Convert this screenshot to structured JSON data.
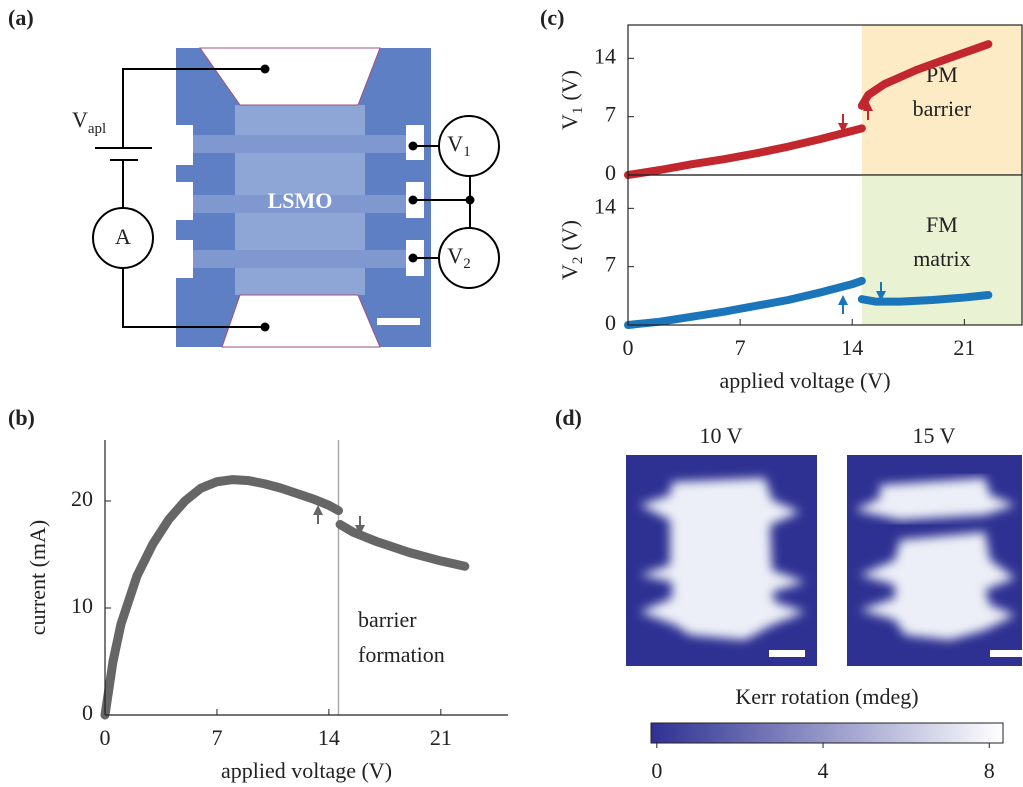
{
  "panels": [
    "(a)",
    "(b)",
    "(c)",
    "(d)"
  ],
  "diagram": {
    "battery_label": [
      "V",
      "apl"
    ],
    "ammeter": "A",
    "voltmeters": [
      [
        "V",
        "1"
      ],
      [
        "V",
        "2"
      ]
    ],
    "sample": "LSMO"
  },
  "images": [
    {
      "title": "10 V"
    },
    {
      "title": "15 V"
    }
  ],
  "chart_data": [
    {
      "type": "line",
      "xlabel": "applied voltage (V)",
      "ylabel": [
        "current (mA)"
      ],
      "x": [
        0,
        0.5,
        1,
        2,
        3,
        4,
        5,
        6,
        7,
        8,
        9,
        10,
        11,
        12,
        13,
        14,
        14.6,
        14.6,
        14.7,
        15.5,
        17,
        19,
        21,
        22.5
      ],
      "series": [
        {
          "color": "#666666",
          "values": [
            0,
            5,
            8.5,
            13,
            16,
            18.3,
            20,
            21.2,
            21.8,
            22,
            21.9,
            21.6,
            21.2,
            20.7,
            20.2,
            19.6,
            19.1,
            null,
            17.8,
            17.1,
            16.2,
            15.2,
            14.4,
            13.9
          ]
        }
      ],
      "vline": 14.6,
      "annotation": [
        "barrier",
        "formation"
      ],
      "xlim": [
        0,
        25.2
      ],
      "ylim": [
        0,
        25.7
      ],
      "xticks": [
        0,
        7,
        14,
        21
      ],
      "yticks": [
        0,
        10,
        20
      ]
    },
    {
      "type": "line",
      "ylabel": [
        "V",
        "1",
        "(V)"
      ],
      "x": [
        0,
        2,
        4,
        6,
        8,
        10,
        12,
        14,
        14.6,
        14.6,
        14.6,
        15,
        16,
        18,
        20,
        22.5
      ],
      "series": [
        {
          "color": "#c1272d",
          "values": [
            0,
            0.6,
            1.3,
            1.9,
            2.6,
            3.4,
            4.3,
            5.3,
            5.6,
            null,
            8.3,
            9.6,
            10.9,
            12.6,
            14,
            15.7
          ]
        }
      ],
      "region": {
        "from": 14.6,
        "color": "#fcebc5",
        "label": [
          "PM",
          "barrier"
        ]
      },
      "xlim": [
        0,
        24.6
      ],
      "ylim": [
        0,
        18
      ],
      "yticks": [
        0,
        7,
        14
      ]
    },
    {
      "type": "line",
      "xlabel": "applied voltage (V)",
      "ylabel": [
        "V",
        "2",
        "(V)"
      ],
      "x": [
        0,
        2,
        4,
        6,
        8,
        10,
        12,
        14,
        14.6,
        14.6,
        14.6,
        15.5,
        17,
        19,
        21,
        22.5
      ],
      "series": [
        {
          "color": "#1b75bb",
          "values": [
            0,
            0.4,
            1,
            1.6,
            2.3,
            3,
            3.9,
            4.9,
            5.3,
            null,
            3.1,
            2.8,
            2.8,
            3,
            3.3,
            3.6
          ]
        }
      ],
      "region": {
        "from": 14.6,
        "color": "#eaf2d4",
        "label": [
          "FM",
          "matrix"
        ]
      },
      "xlim": [
        0,
        24.6
      ],
      "ylim": [
        0,
        18
      ],
      "xticks": [
        0,
        7,
        14,
        21
      ],
      "yticks": [
        0,
        7,
        14
      ]
    },
    {
      "type": "colorbar",
      "title": "Kerr rotation (mdeg)",
      "colors": [
        "#2e3192",
        "#ffffff"
      ],
      "xlim": [
        -0.14,
        8.33
      ],
      "xticks": [
        0,
        4,
        8
      ]
    }
  ]
}
